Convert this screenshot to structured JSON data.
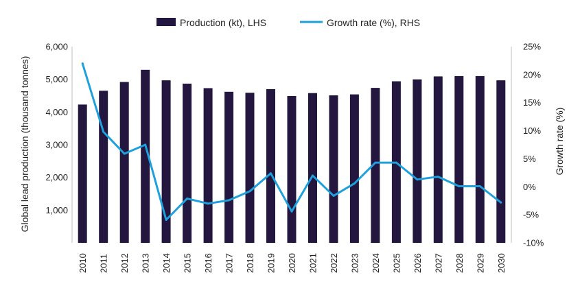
{
  "chart_data": {
    "type": "bar+line",
    "categories": [
      "2010",
      "2011",
      "2012",
      "2013",
      "2014",
      "2015",
      "2016",
      "2017",
      "2018",
      "2019",
      "2020",
      "2021",
      "2022",
      "2023",
      "2024",
      "2025",
      "2026",
      "2027",
      "2028",
      "2029",
      "2030"
    ],
    "series": [
      {
        "name": "Production (kt), LHS",
        "type": "bar",
        "axis": "left",
        "color": "#24173f",
        "values": [
          4230,
          4650,
          4920,
          5290,
          4970,
          4870,
          4730,
          4620,
          4590,
          4700,
          4490,
          4580,
          4510,
          4540,
          4740,
          4940,
          5000,
          5090,
          5100,
          5100,
          4970
        ]
      },
      {
        "name": "Growth rate (%), RHS",
        "type": "line",
        "axis": "right",
        "color": "#1ea0dc",
        "values": [
          22.0,
          9.8,
          5.9,
          7.5,
          -5.9,
          -2.1,
          -3.0,
          -2.4,
          -0.8,
          2.4,
          -4.4,
          2.0,
          -1.6,
          0.6,
          4.3,
          4.3,
          1.3,
          1.8,
          0.1,
          0.1,
          -2.8
        ]
      }
    ],
    "ylabel": "Global lead production (thousand tonnes)",
    "y2label": "Growth rate (%)",
    "ylim": [
      0,
      6000
    ],
    "y2lim": [
      -10,
      25
    ],
    "yticks": [
      "1,000",
      "2,000",
      "3,000",
      "4,000",
      "5,000",
      "6,000"
    ],
    "y2ticks": [
      "-10%",
      "-5%",
      "0%",
      "5%",
      "10%",
      "15%",
      "20%",
      "25%"
    ],
    "legend_position": "top",
    "grid": false
  }
}
